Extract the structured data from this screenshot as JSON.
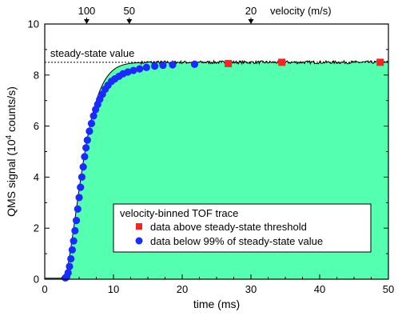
{
  "chart_data": {
    "type": "scatter",
    "xlabel": "time (ms)",
    "ylabel_main": "QMS signal (10",
    "ylabel_sup": "4",
    "ylabel_tail": " counts/s)",
    "xlim": [
      0,
      50
    ],
    "ylim": [
      0,
      10
    ],
    "x_ticks": [
      0,
      10,
      20,
      30,
      40,
      50
    ],
    "y_ticks": [
      0,
      2,
      4,
      6,
      8,
      10
    ],
    "top_axis": {
      "label": "velocity (m/s)",
      "ticks": [
        {
          "label": "100",
          "time": 6.1
        },
        {
          "label": "50",
          "time": 12.3
        },
        {
          "label": "20",
          "time": 30.0
        }
      ]
    },
    "steady_state": {
      "label": "steady-state value",
      "value": 8.5
    },
    "fill_color": "#55ffb0",
    "legend": {
      "title": "velocity-binned TOF trace",
      "entries": [
        {
          "label": "data above steady-state threshold",
          "marker": "square",
          "color": "#ff2020"
        },
        {
          "label": "data below 99% of steady-state value",
          "marker": "circle",
          "color": "#1a2bff"
        }
      ],
      "placement": "lower-right"
    },
    "series": [
      {
        "name": "data below 99% of steady-state value",
        "marker": "circle",
        "color": "#1a2bff",
        "points": [
          [
            3.0,
            0.05
          ],
          [
            3.2,
            0.1
          ],
          [
            3.4,
            0.25
          ],
          [
            3.6,
            0.5
          ],
          [
            3.8,
            0.8
          ],
          [
            4.0,
            1.15
          ],
          [
            4.2,
            1.5
          ],
          [
            4.4,
            1.9
          ],
          [
            4.6,
            2.3
          ],
          [
            4.8,
            2.75
          ],
          [
            5.0,
            3.2
          ],
          [
            5.2,
            3.6
          ],
          [
            5.4,
            4.0
          ],
          [
            5.6,
            4.4
          ],
          [
            5.8,
            4.8
          ],
          [
            6.0,
            5.15
          ],
          [
            6.2,
            5.45
          ],
          [
            6.5,
            5.8
          ],
          [
            6.8,
            6.1
          ],
          [
            7.1,
            6.4
          ],
          [
            7.4,
            6.65
          ],
          [
            7.7,
            6.85
          ],
          [
            8.0,
            7.05
          ],
          [
            8.4,
            7.25
          ],
          [
            8.8,
            7.45
          ],
          [
            9.2,
            7.6
          ],
          [
            9.7,
            7.75
          ],
          [
            10.2,
            7.85
          ],
          [
            10.8,
            7.95
          ],
          [
            11.4,
            8.05
          ],
          [
            12.1,
            8.12
          ],
          [
            12.9,
            8.18
          ],
          [
            13.8,
            8.24
          ],
          [
            14.8,
            8.3
          ],
          [
            16.0,
            8.35
          ],
          [
            17.2,
            8.38
          ],
          [
            18.6,
            8.4
          ],
          [
            21.8,
            8.42
          ]
        ]
      },
      {
        "name": "data above steady-state threshold",
        "marker": "square",
        "color": "#ff2020",
        "points": [
          [
            26.7,
            8.45
          ],
          [
            34.5,
            8.5
          ],
          [
            48.8,
            8.5
          ]
        ]
      }
    ]
  }
}
